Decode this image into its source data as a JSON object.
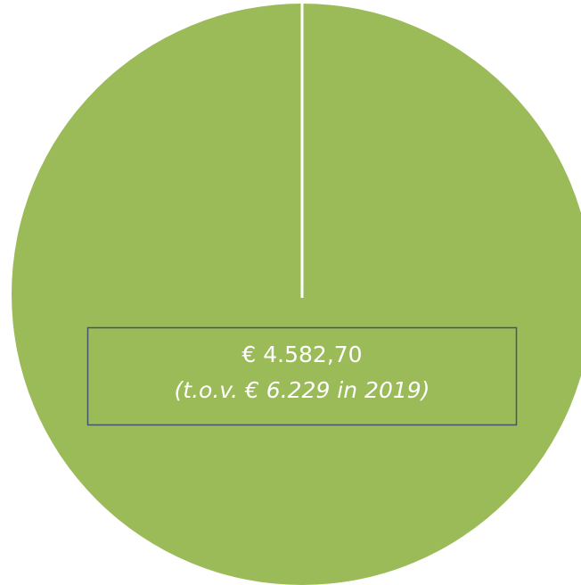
{
  "label": {
    "amount": "€ 4.582,70",
    "comparison": "(t.o.v. € 6.229 in 2019)"
  }
}
